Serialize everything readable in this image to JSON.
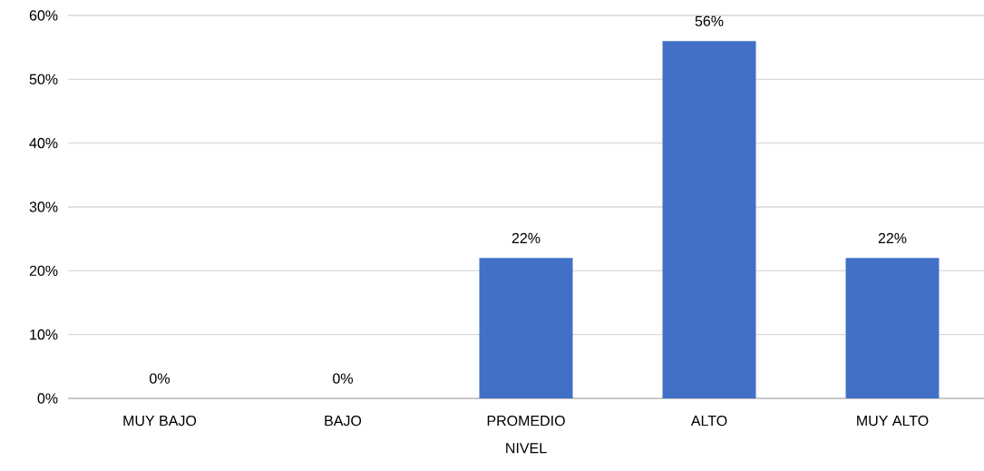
{
  "chart_data": {
    "type": "bar",
    "xlabel": "NIVEL",
    "categories": [
      "MUY BAJO",
      "BAJO",
      "PROMEDIO",
      "ALTO",
      "MUY ALTO"
    ],
    "values": [
      0,
      0,
      22,
      56,
      22
    ],
    "value_labels": [
      "0%",
      "0%",
      "22%",
      "56%",
      "22%"
    ],
    "color": "#4270c6",
    "ylim": [
      0,
      60
    ],
    "yticks": [
      {
        "value": 0,
        "label": "0%"
      },
      {
        "value": 10,
        "label": "10%"
      },
      {
        "value": 20,
        "label": "20%"
      },
      {
        "value": 30,
        "label": "30%"
      },
      {
        "value": 40,
        "label": "40%"
      },
      {
        "value": 50,
        "label": "50%"
      },
      {
        "value": 60,
        "label": "60%"
      }
    ],
    "grid": "y"
  }
}
